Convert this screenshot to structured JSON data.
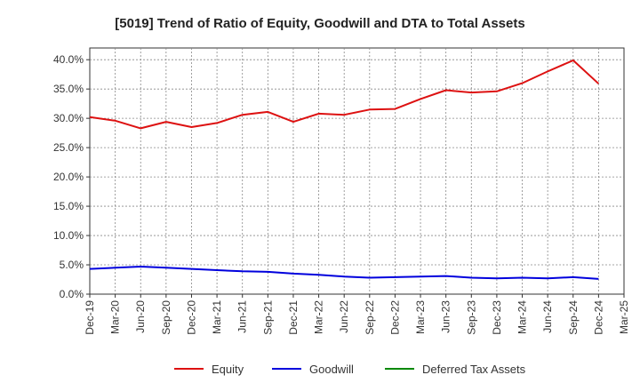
{
  "chart_data": {
    "type": "line",
    "title": "[5019]  Trend of Ratio of Equity, Goodwill and DTA to Total Assets",
    "xlabel": "",
    "ylabel": "",
    "ylim": [
      0,
      42
    ],
    "y_ticks": [
      0,
      5,
      10,
      15,
      20,
      25,
      30,
      35,
      40
    ],
    "y_tick_labels": [
      "0.0%",
      "5.0%",
      "10.0%",
      "15.0%",
      "20.0%",
      "25.0%",
      "30.0%",
      "35.0%",
      "40.0%"
    ],
    "x_tick_labels": [
      "Dec-19",
      "Mar-20",
      "Jun-20",
      "Sep-20",
      "Dec-20",
      "Mar-21",
      "Jun-21",
      "Sep-21",
      "Dec-21",
      "Mar-22",
      "Jun-22",
      "Sep-22",
      "Dec-22",
      "Mar-23",
      "Jun-23",
      "Sep-23",
      "Dec-23",
      "Mar-24",
      "Jun-24",
      "Sep-24",
      "Dec-24",
      "Mar-25"
    ],
    "grid": true,
    "legend_position": "bottom",
    "series": [
      {
        "name": "Equity",
        "color": "#dd1111",
        "values": [
          30.2,
          29.6,
          28.3,
          29.4,
          28.5,
          29.2,
          30.6,
          31.1,
          29.4,
          30.8,
          30.6,
          31.5,
          31.6,
          33.3,
          34.8,
          34.4,
          34.6,
          36.0,
          38.0,
          39.9,
          35.9,
          null
        ]
      },
      {
        "name": "Goodwill",
        "color": "#0000dd",
        "values": [
          4.3,
          4.5,
          4.7,
          4.5,
          4.3,
          4.1,
          3.9,
          3.8,
          3.5,
          3.3,
          3.0,
          2.8,
          2.9,
          3.0,
          3.1,
          2.8,
          2.7,
          2.8,
          2.7,
          2.9,
          2.6,
          null
        ]
      },
      {
        "name": "Deferred Tax Assets",
        "color": "#008800",
        "values": [
          null,
          null,
          null,
          null,
          null,
          null,
          null,
          null,
          null,
          null,
          null,
          null,
          null,
          null,
          null,
          null,
          null,
          null,
          null,
          null,
          null,
          null
        ]
      }
    ]
  }
}
